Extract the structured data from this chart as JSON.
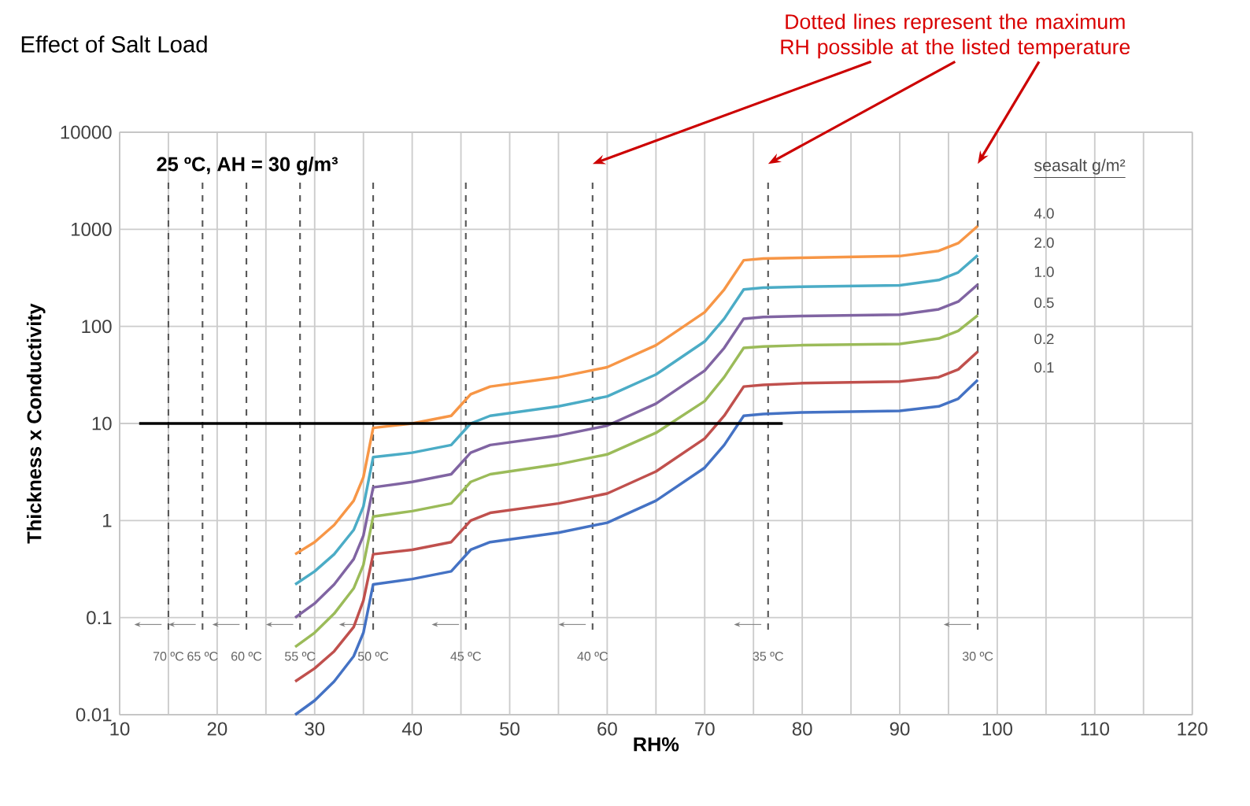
{
  "chart_data": {
    "type": "line",
    "title": "Effect of Salt Load",
    "xlabel": "RH%",
    "ylabel": "Thickness x Conductivity",
    "legend_title": "seasalt g/m²",
    "annotations": [
      "25 ºC, AH = 30 g/m³",
      "Dotted lines represent the maximum RH possible at the listed temperature"
    ],
    "x": [
      28,
      30,
      32,
      34,
      35,
      36,
      40,
      44,
      46,
      48,
      55,
      60,
      65,
      70,
      72,
      74,
      76,
      80,
      90,
      94,
      96,
      98
    ],
    "series": [
      {
        "name": "4.0",
        "color": "#f79646",
        "values": [
          0.45,
          0.6,
          0.9,
          1.6,
          2.8,
          9,
          10,
          12,
          20,
          24,
          30,
          38,
          64,
          140,
          240,
          480,
          500,
          510,
          530,
          600,
          720,
          1080
        ]
      },
      {
        "name": "2.0",
        "color": "#4bacc6",
        "values": [
          0.22,
          0.3,
          0.45,
          0.8,
          1.4,
          4.5,
          5,
          6,
          10,
          12,
          15,
          19,
          32,
          70,
          120,
          240,
          250,
          256,
          265,
          300,
          360,
          540
        ]
      },
      {
        "name": "1.0",
        "color": "#8064a2",
        "values": [
          0.1,
          0.14,
          0.22,
          0.4,
          0.7,
          2.2,
          2.5,
          3,
          5,
          6,
          7.5,
          9.5,
          16,
          35,
          60,
          120,
          125,
          128,
          132,
          150,
          180,
          270
        ]
      },
      {
        "name": "0.5",
        "color": "#9bbb59",
        "values": [
          0.05,
          0.07,
          0.11,
          0.2,
          0.35,
          1.1,
          1.25,
          1.5,
          2.5,
          3,
          3.8,
          4.8,
          8,
          17,
          30,
          60,
          62,
          64,
          66,
          75,
          90,
          130
        ]
      },
      {
        "name": "0.2",
        "color": "#c0504d",
        "values": [
          0.022,
          0.03,
          0.045,
          0.08,
          0.15,
          0.45,
          0.5,
          0.6,
          1.0,
          1.2,
          1.5,
          1.9,
          3.2,
          7,
          12,
          24,
          25,
          26,
          27,
          30,
          36,
          55
        ]
      },
      {
        "name": "0.1",
        "color": "#4472c4",
        "values": [
          0.01,
          0.014,
          0.022,
          0.04,
          0.07,
          0.22,
          0.25,
          0.3,
          0.5,
          0.6,
          0.75,
          0.95,
          1.6,
          3.5,
          6,
          12,
          12.5,
          13,
          13.5,
          15,
          18,
          28
        ]
      },
      {
        "type": "line",
        "color": "#000000",
        "x": [
          12,
          78
        ],
        "values": [
          10,
          10
        ]
      }
    ],
    "ref_lines": [
      {
        "axis": "x",
        "value": 15,
        "label": "70 ºC",
        "line_style": "dashed"
      },
      {
        "axis": "x",
        "value": 18.5,
        "label": "65 ºC",
        "line_style": "dashed"
      },
      {
        "axis": "x",
        "value": 23,
        "label": "60 ºC",
        "line_style": "dashed"
      },
      {
        "axis": "x",
        "value": 28.5,
        "label": "55 ºC",
        "line_style": "dashed"
      },
      {
        "axis": "x",
        "value": 36,
        "label": "50 ºC",
        "line_style": "dashed"
      },
      {
        "axis": "x",
        "value": 45.5,
        "label": "45 ºC",
        "line_style": "dashed"
      },
      {
        "axis": "x",
        "value": 58.5,
        "label": "40 ºC",
        "line_style": "dashed"
      },
      {
        "axis": "x",
        "value": 76.5,
        "label": "35 ºC",
        "line_style": "dashed"
      },
      {
        "axis": "x",
        "value": 98,
        "label": "30 ºC",
        "line_style": "dashed"
      }
    ],
    "xlim": [
      10,
      120
    ],
    "ylim": [
      0.01,
      10000
    ],
    "log": "y",
    "xticks": [
      10,
      {
        "value": 15,
        "label": null
      },
      20,
      {
        "value": 25,
        "label": null
      },
      30,
      {
        "value": 35,
        "label": null
      },
      40,
      {
        "value": 45,
        "label": null
      },
      50,
      {
        "value": 55,
        "label": null
      },
      60,
      {
        "value": 65,
        "label": null
      },
      70,
      {
        "value": 75,
        "label": null
      },
      80,
      {
        "value": 85,
        "label": null
      },
      90,
      {
        "value": 95,
        "label": null
      },
      100,
      {
        "value": 105,
        "label": null
      },
      110,
      {
        "value": 115,
        "label": null
      },
      120
    ],
    "yticks": [
      0.01,
      0.1,
      1,
      10,
      100,
      1000,
      10000
    ],
    "grid": true,
    "line_style": "solid",
    "marker": "none"
  }
}
